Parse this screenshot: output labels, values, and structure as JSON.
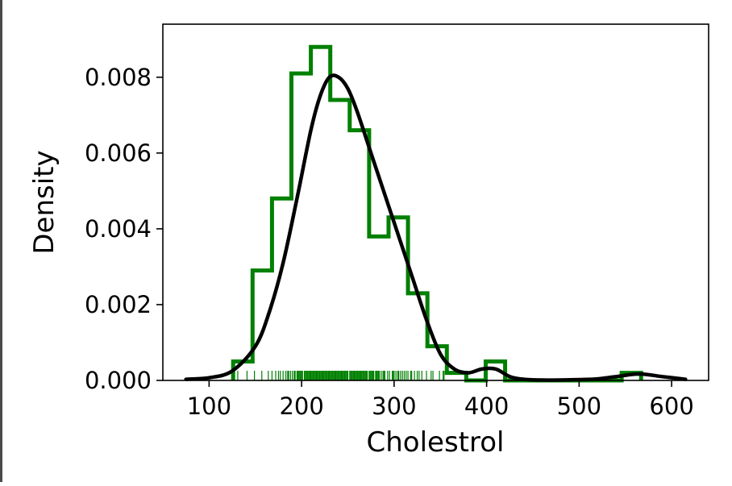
{
  "chart_data": {
    "type": "histogram",
    "xlabel": "Cholestrol",
    "ylabel": "Density",
    "xlim": [
      50,
      640
    ],
    "ylim": [
      0,
      0.0094
    ],
    "x_ticks": [
      100,
      200,
      300,
      400,
      500,
      600
    ],
    "x_tick_labels": [
      "100",
      "200",
      "300",
      "400",
      "500",
      "600"
    ],
    "y_ticks": [
      0.0,
      0.002,
      0.004,
      0.006,
      0.008
    ],
    "y_tick_labels": [
      "0.000",
      "0.002",
      "0.004",
      "0.006",
      "0.008"
    ],
    "grid": false,
    "histogram": {
      "style": "step",
      "color": "#008000",
      "bin_edges": [
        126,
        147,
        168,
        189,
        210,
        231,
        252,
        273,
        294,
        315,
        336,
        357,
        378,
        399,
        420,
        441,
        462,
        483,
        504,
        525,
        546,
        567
      ],
      "densities": [
        0.0005,
        0.0029,
        0.0048,
        0.0081,
        0.0088,
        0.0074,
        0.0066,
        0.0038,
        0.0043,
        0.0023,
        0.0009,
        0.0002,
        0.0,
        0.0005,
        0.0,
        0.0,
        0.0,
        0.0,
        0.0,
        0.0,
        0.0002
      ]
    },
    "kde": {
      "color": "#000000",
      "x": [
        75,
        100,
        125,
        150,
        165,
        180,
        195,
        210,
        220,
        230,
        240,
        250,
        260,
        275,
        290,
        305,
        320,
        335,
        350,
        365,
        380,
        395,
        410,
        425,
        440,
        460,
        480,
        500,
        520,
        540,
        565,
        590,
        615
      ],
      "y": [
        3e-05,
        7e-05,
        0.00025,
        0.0009,
        0.0018,
        0.0031,
        0.0048,
        0.0066,
        0.0075,
        0.008,
        0.008,
        0.0077,
        0.0071,
        0.006,
        0.0049,
        0.0038,
        0.0027,
        0.0016,
        0.0007,
        0.0003,
        0.0002,
        0.0003,
        0.0003,
        0.0001,
        3e-05,
        1e-05,
        1e-05,
        2e-05,
        4e-05,
        0.0001,
        0.00017,
        0.0001,
        3e-05
      ]
    },
    "rug": {
      "color": "#008000",
      "values": [
        126,
        131,
        141,
        149,
        157,
        164,
        168,
        172,
        175,
        177,
        180,
        183,
        185,
        186,
        188,
        190,
        192,
        193,
        195,
        196,
        197,
        198,
        199,
        200,
        201,
        203,
        204,
        205,
        206,
        207,
        208,
        209,
        210,
        211,
        212,
        213,
        214,
        215,
        216,
        217,
        218,
        219,
        220,
        221,
        222,
        223,
        224,
        225,
        226,
        227,
        228,
        229,
        230,
        231,
        232,
        233,
        234,
        235,
        236,
        237,
        238,
        239,
        240,
        241,
        242,
        243,
        244,
        245,
        246,
        247,
        248,
        249,
        250,
        252,
        253,
        254,
        255,
        256,
        257,
        258,
        259,
        260,
        261,
        262,
        263,
        264,
        265,
        266,
        267,
        268,
        269,
        270,
        271,
        273,
        274,
        275,
        276,
        277,
        278,
        280,
        281,
        282,
        283,
        284,
        286,
        288,
        289,
        290,
        293,
        295,
        298,
        299,
        300,
        302,
        304,
        305,
        307,
        309,
        311,
        313,
        315,
        318,
        319,
        322,
        325,
        327,
        330,
        335,
        340,
        342,
        349,
        353,
        354
      ]
    }
  }
}
